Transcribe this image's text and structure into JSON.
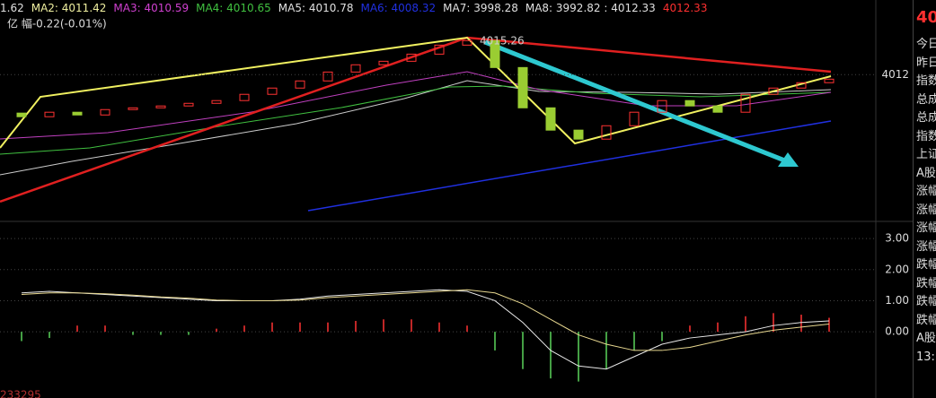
{
  "header": {
    "items": [
      {
        "text": "1.62",
        "color": "#e0e0e0"
      },
      {
        "text": "MA2: 4011.42",
        "color": "#f0f0a0"
      },
      {
        "text": "MA3: 4010.59",
        "color": "#d040d0"
      },
      {
        "text": "MA4: 4010.65",
        "color": "#40c040"
      },
      {
        "text": "MA5: 4010.78",
        "color": "#e0e0e0"
      },
      {
        "text": "MA6: 4008.32",
        "color": "#2030e0"
      },
      {
        "text": "MA7: 3998.28",
        "color": "#e0e0e0"
      },
      {
        "text": "MA8: 3992.82 : 4012.33",
        "color": "#e0e0e0"
      },
      {
        "text": "4012.33",
        "color": "#ff3030"
      }
    ],
    "line2": "亿 幅-0.22(-0.01%)"
  },
  "chart_data": {
    "type": "candlestick",
    "open": [
      4008.5,
      4008.17,
      4008.58,
      4008.33,
      4008.82,
      4008.98,
      4009.15,
      4009.39,
      4009.64,
      4010.21,
      4010.78,
      4011.43,
      4012.24,
      4012.9,
      4013.22,
      4013.87,
      4014.69,
      4015.1,
      4012.65,
      4008.98,
      4006.95,
      4006.13,
      4007.35,
      4008.58,
      4009.64,
      4009.15,
      4008.58,
      4010.21,
      4010.78,
      4011.27
    ],
    "close": [
      4008.17,
      4008.58,
      4008.33,
      4008.82,
      4008.98,
      4009.15,
      4009.39,
      4009.64,
      4010.21,
      4010.78,
      4011.43,
      4012.24,
      4012.9,
      4013.22,
      4013.87,
      4014.69,
      4015.1,
      4012.65,
      4008.98,
      4006.95,
      4006.13,
      4007.35,
      4008.58,
      4009.64,
      4009.15,
      4008.58,
      4010.21,
      4010.78,
      4011.27,
      4011.59
    ],
    "up_color": "#ff3232",
    "down_color": "#9acd32",
    "ylim": [
      3998.8,
      4018.8
    ],
    "yticks": [
      4012
    ],
    "peak_label": "4015.26"
  },
  "macd_data": {
    "type": "macd",
    "hist": [
      -0.3,
      -0.2,
      0.2,
      0.2,
      -0.1,
      -0.1,
      -0.1,
      0.1,
      0.2,
      0.3,
      0.3,
      0.3,
      0.35,
      0.4,
      0.4,
      0.3,
      0.2,
      -0.6,
      -1.2,
      -1.5,
      -1.6,
      -1.2,
      -0.6,
      -0.3,
      0.2,
      0.3,
      0.5,
      0.6,
      0.55,
      0.45
    ],
    "dif": [
      1.25,
      1.3,
      1.25,
      1.2,
      1.15,
      1.1,
      1.05,
      1.0,
      1.0,
      1.0,
      1.05,
      1.15,
      1.2,
      1.25,
      1.3,
      1.35,
      1.3,
      1.0,
      0.3,
      -0.6,
      -1.1,
      -1.2,
      -0.8,
      -0.4,
      -0.2,
      -0.1,
      0.0,
      0.2,
      0.3,
      0.35
    ],
    "dea": [
      1.2,
      1.25,
      1.25,
      1.22,
      1.18,
      1.12,
      1.08,
      1.02,
      1.0,
      1.0,
      1.02,
      1.1,
      1.15,
      1.2,
      1.25,
      1.3,
      1.35,
      1.25,
      0.9,
      0.4,
      -0.1,
      -0.4,
      -0.6,
      -0.6,
      -0.5,
      -0.3,
      -0.1,
      0.05,
      0.15,
      0.25
    ],
    "pos_color": "#ff3232",
    "neg_color": "#5bd45b",
    "dif_color": "#e8e8e8",
    "dea_color": "#e8d890",
    "ylim": [
      -2.13,
      3.55
    ],
    "yticks": [
      {
        "value": 3,
        "label": "3.00"
      },
      {
        "value": 2,
        "label": "2.00"
      },
      {
        "value": 1,
        "label": "1.00"
      },
      {
        "value": 0,
        "label": "0.00"
      }
    ]
  },
  "volume_label": "233295",
  "side": {
    "price": "40",
    "labels": [
      "今日",
      "昨日",
      "指数",
      "总成",
      "总成",
      "指数",
      "上证",
      "A股",
      "涨幅",
      "涨幅",
      "涨幅",
      "涨幅",
      "跌幅",
      "跌幅",
      "跌幅",
      "跌幅",
      "A股",
      "13:"
    ]
  }
}
